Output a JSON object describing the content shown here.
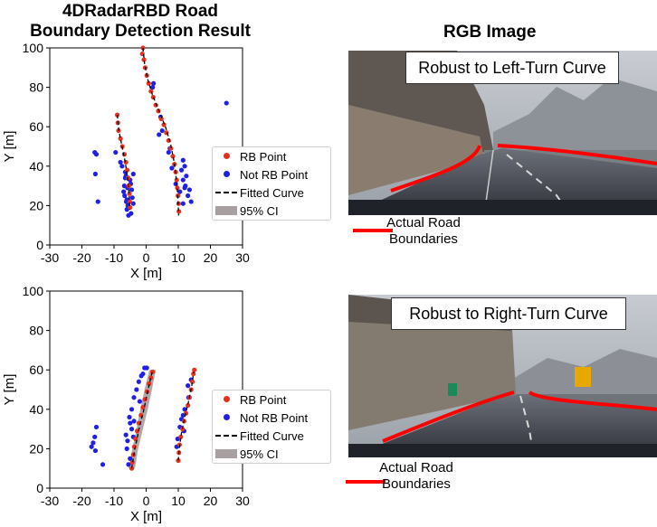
{
  "left_title": "4DRadarRBD Road\nBoundary Detection Result",
  "right_title": "RGB Image",
  "colors": {
    "rb": "#e8301e",
    "not_rb": "#1f1fe6",
    "ci": "#a8a0a0",
    "boundary": "#ff0000"
  },
  "chart_data": [
    {
      "type": "scatter",
      "xlabel": "X [m]",
      "ylabel": "Y [m]",
      "xlim": [
        -30,
        30
      ],
      "ylim": [
        0,
        100
      ],
      "xticks": [
        -30,
        -20,
        -10,
        0,
        10,
        20,
        30
      ],
      "yticks": [
        0,
        20,
        40,
        60,
        80,
        100
      ],
      "grid": false,
      "legend_position": "right-outside",
      "legend": [
        "RB Point",
        "Not RB Point",
        "Fitted Curve",
        "95% CI"
      ],
      "curves": [
        [
          [
            -1,
            100
          ],
          [
            -0.5,
            92
          ],
          [
            0.5,
            84
          ],
          [
            2,
            76
          ],
          [
            4,
            68
          ],
          [
            6,
            60
          ],
          [
            7.5,
            52
          ],
          [
            8.5,
            44
          ],
          [
            9.2,
            36
          ],
          [
            9.7,
            28
          ],
          [
            10,
            20
          ],
          [
            10.1,
            15
          ]
        ],
        [
          [
            -9,
            66
          ],
          [
            -8.5,
            58
          ],
          [
            -7.5,
            50
          ],
          [
            -6.5,
            42
          ],
          [
            -5.8,
            34
          ],
          [
            -5.3,
            26
          ],
          [
            -5.1,
            18
          ]
        ]
      ],
      "rb_points": [
        [
          -1,
          100
        ],
        [
          -1.2,
          97
        ],
        [
          -0.7,
          94
        ],
        [
          -0.3,
          90
        ],
        [
          0.2,
          86
        ],
        [
          0.8,
          82
        ],
        [
          1.5,
          78
        ],
        [
          2.2,
          75
        ],
        [
          3,
          71
        ],
        [
          3.8,
          68
        ],
        [
          4.7,
          64
        ],
        [
          5.5,
          61
        ],
        [
          6.3,
          57
        ],
        [
          7,
          53
        ],
        [
          7.7,
          49
        ],
        [
          8.3,
          45
        ],
        [
          8.8,
          41
        ],
        [
          9.2,
          37
        ],
        [
          9.5,
          33
        ],
        [
          9.7,
          29
        ],
        [
          9.9,
          25
        ],
        [
          10.1,
          21
        ],
        [
          10.2,
          17
        ],
        [
          -9,
          66
        ],
        [
          -8.8,
          62
        ],
        [
          -8.6,
          58
        ],
        [
          -8,
          54
        ],
        [
          -7.4,
          50
        ],
        [
          -6.8,
          46
        ],
        [
          -6.3,
          42
        ],
        [
          -5.9,
          38
        ],
        [
          -5.6,
          34
        ],
        [
          -5.4,
          30
        ],
        [
          -5.2,
          26
        ],
        [
          -5.1,
          22
        ],
        [
          -5,
          19
        ]
      ],
      "not_rb_points": [
        [
          25,
          72
        ],
        [
          -16,
          47
        ],
        [
          -15.5,
          46
        ],
        [
          -15.8,
          36
        ],
        [
          -15,
          22
        ],
        [
          -9.5,
          47
        ],
        [
          -8,
          42
        ],
        [
          -7.5,
          40
        ],
        [
          -6.5,
          34
        ],
        [
          -6.8,
          30
        ],
        [
          -7,
          27
        ],
        [
          -6.7,
          25
        ],
        [
          -6.2,
          22
        ],
        [
          -5.7,
          20
        ],
        [
          -6.5,
          37
        ],
        [
          -4,
          36
        ],
        [
          -4.5,
          28
        ],
        [
          -4.3,
          24
        ],
        [
          -4,
          21
        ],
        [
          -6,
          18
        ],
        [
          -4.7,
          16
        ],
        [
          -5.5,
          15
        ],
        [
          -6,
          23
        ],
        [
          -5.8,
          29
        ],
        [
          -4.8,
          31
        ],
        [
          -5,
          33
        ],
        [
          -6.3,
          35
        ],
        [
          2,
          80
        ],
        [
          2.3,
          82
        ],
        [
          4.5,
          65
        ],
        [
          4,
          56
        ],
        [
          5,
          58
        ],
        [
          7,
          47
        ],
        [
          7.4,
          49
        ],
        [
          8,
          39
        ],
        [
          9.2,
          31
        ],
        [
          10.5,
          27
        ],
        [
          11.5,
          43
        ],
        [
          11,
          38
        ],
        [
          11.5,
          33
        ],
        [
          12,
          40
        ],
        [
          12.5,
          35
        ],
        [
          12.2,
          30
        ],
        [
          13,
          25
        ],
        [
          14,
          22
        ],
        [
          11.5,
          21
        ],
        [
          12,
          29
        ],
        [
          13.5,
          28
        ]
      ]
    },
    {
      "type": "scatter",
      "xlabel": "X [m]",
      "ylabel": "Y [m]",
      "xlim": [
        -30,
        30
      ],
      "ylim": [
        0,
        100
      ],
      "xticks": [
        -30,
        -20,
        -10,
        0,
        10,
        20,
        30
      ],
      "yticks": [
        0,
        20,
        40,
        60,
        80,
        100
      ],
      "grid": false,
      "legend_position": "right-outside",
      "legend": [
        "RB Point",
        "Not RB Point",
        "Fitted Curve",
        "95% CI"
      ],
      "ci_band": [
        [
          -5.5,
          10
        ],
        [
          -3.5,
          10
        ],
        [
          -2.5,
          20
        ],
        [
          -1,
          30
        ],
        [
          0.5,
          40
        ],
        [
          1.8,
          50
        ],
        [
          3,
          60
        ],
        [
          1,
          60
        ],
        [
          -0.5,
          50
        ],
        [
          -1.8,
          40
        ],
        [
          -3,
          30
        ],
        [
          -4.3,
          20
        ]
      ],
      "curves": [
        [
          [
            -4.5,
            10
          ],
          [
            -3.5,
            20
          ],
          [
            -2.2,
            30
          ],
          [
            -0.7,
            40
          ],
          [
            0.6,
            50
          ],
          [
            2,
            60
          ]
        ],
        [
          [
            10,
            14
          ],
          [
            10.3,
            20
          ],
          [
            11,
            28
          ],
          [
            12,
            36
          ],
          [
            13.2,
            44
          ],
          [
            14.2,
            52
          ],
          [
            14.8,
            59
          ]
        ]
      ],
      "rb_points": [
        [
          -4.5,
          10
        ],
        [
          -4.3,
          13
        ],
        [
          -4,
          17
        ],
        [
          -3.7,
          21
        ],
        [
          -3.3,
          25
        ],
        [
          -2.8,
          29
        ],
        [
          -2.3,
          33
        ],
        [
          -1.6,
          37
        ],
        [
          -1,
          41
        ],
        [
          -0.4,
          45
        ],
        [
          0.3,
          49
        ],
        [
          0.9,
          53
        ],
        [
          1.5,
          56
        ],
        [
          2,
          59
        ],
        [
          10,
          14
        ],
        [
          10.2,
          18
        ],
        [
          10.4,
          22
        ],
        [
          10.8,
          26
        ],
        [
          11.3,
          30
        ],
        [
          11.8,
          34
        ],
        [
          12.4,
          38
        ],
        [
          13,
          42
        ],
        [
          13.5,
          46
        ],
        [
          14,
          50
        ],
        [
          14.4,
          54
        ],
        [
          14.7,
          58
        ],
        [
          15,
          60
        ]
      ],
      "not_rb_points": [
        [
          -16,
          26
        ],
        [
          -16.5,
          23
        ],
        [
          -17,
          21
        ],
        [
          -15.5,
          31
        ],
        [
          -15.8,
          19
        ],
        [
          -13.5,
          12
        ],
        [
          -5.5,
          12
        ],
        [
          -5,
          15
        ],
        [
          -5.8,
          24
        ],
        [
          -6.3,
          27
        ],
        [
          -5.2,
          36
        ],
        [
          -4.5,
          40
        ],
        [
          -3.8,
          46
        ],
        [
          -3,
          50
        ],
        [
          -2.3,
          54
        ],
        [
          -1.5,
          57
        ],
        [
          -0.5,
          61
        ],
        [
          0.2,
          61
        ],
        [
          -2,
          44
        ],
        [
          -1,
          58
        ],
        [
          -4.5,
          30
        ],
        [
          -5,
          33
        ],
        [
          -6,
          20
        ],
        [
          -4,
          26
        ],
        [
          -3.8,
          34
        ],
        [
          9.5,
          21
        ],
        [
          9.8,
          25
        ],
        [
          10.5,
          31
        ],
        [
          11,
          35
        ],
        [
          12,
          40
        ],
        [
          11.8,
          29
        ],
        [
          13.2,
          46
        ],
        [
          11.5,
          37
        ],
        [
          13,
          52
        ],
        [
          14,
          55
        ]
      ]
    }
  ],
  "photos": [
    {
      "caption": "Robust to Left-Turn Curve"
    },
    {
      "caption": "Robust to Right-Turn Curve"
    }
  ],
  "road_legend": {
    "line1": "Actual Road",
    "line2": "Boundaries"
  }
}
